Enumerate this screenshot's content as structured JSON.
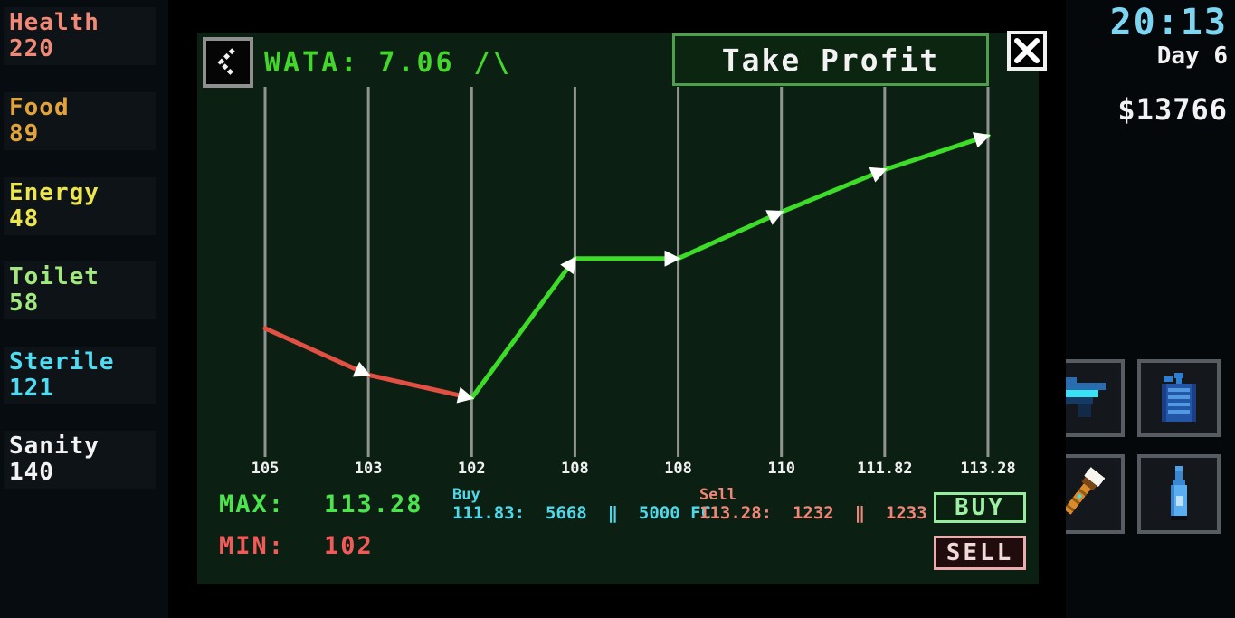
{
  "stats": [
    {
      "label": "Health",
      "value": "220",
      "color": "#f28876"
    },
    {
      "label": "Food",
      "value": "89",
      "color": "#e3a33b"
    },
    {
      "label": "Energy",
      "value": "48",
      "color": "#ece54e"
    },
    {
      "label": "Toilet",
      "value": "58",
      "color": "#a2e87e"
    },
    {
      "label": "Sterile",
      "value": "121",
      "color": "#4fdcf2"
    },
    {
      "label": "Sanity",
      "value": "140",
      "color": "#f2f2f2"
    }
  ],
  "hud": {
    "time": "20:13",
    "day": "Day 6",
    "money": "$13766",
    "time_color": "#7cd6f2"
  },
  "slots": [
    {
      "icon": "gun-icon"
    },
    {
      "icon": "water-canister-icon"
    },
    {
      "icon": "torch-icon"
    },
    {
      "icon": "bottle-icon"
    }
  ],
  "panel": {
    "title": "WATA: 7.06 /\\",
    "take_profit_label": "Take Profit",
    "max_label": "MAX:",
    "max_value": "113.28",
    "min_label": "MIN:",
    "min_value": "102",
    "buy_info": {
      "title": "Buy",
      "line": "111.83:  5668  ‖  5000 FC"
    },
    "sell_info": {
      "title": "Sell",
      "line": "113.28:  1232  ‖  1233 FC"
    },
    "buy_button": "BUY",
    "sell_button": "SELL"
  },
  "chart_data": {
    "type": "line",
    "title": "WATA: 7.06",
    "x_labels": [
      "105",
      "103",
      "102",
      "108",
      "108",
      "110",
      "111.82",
      "113.28"
    ],
    "values": [
      105,
      103,
      102,
      108,
      108,
      110,
      111.82,
      113.28
    ],
    "ylim": [
      102,
      113.28
    ],
    "max": 113.28,
    "min": 102,
    "trend": "up",
    "grid": "vertical-only",
    "up_color": "#3cdc28",
    "down_color": "#e25043",
    "gridline_color": "#8f948f",
    "marker_color": "#ffffff",
    "label_color": "#f0f0f0"
  }
}
